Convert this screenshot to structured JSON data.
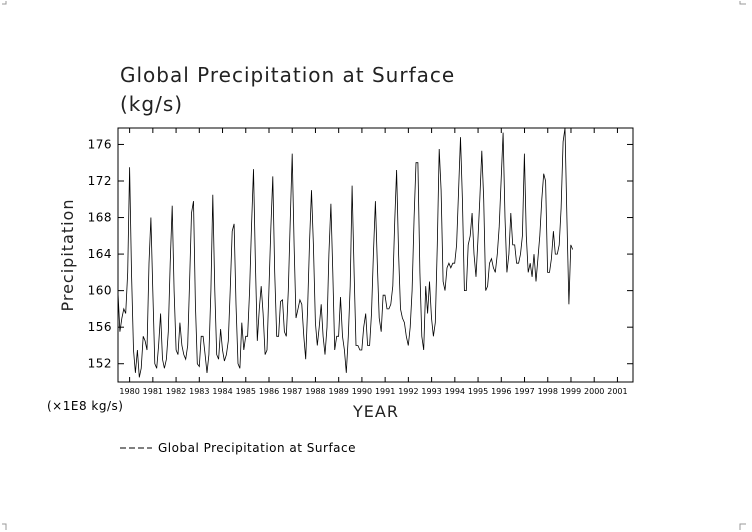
{
  "chart_data": {
    "type": "line",
    "title": "Global Precipitation at Surface",
    "units": "(kg/s)",
    "xlabel": "YEAR",
    "ylabel": "Precipitation",
    "scale_note": "(×1E8 kg/s)",
    "ylim": [
      150,
      177.8
    ],
    "yticks": [
      152,
      156,
      160,
      164,
      168,
      172,
      176
    ],
    "xlim": [
      1979.5,
      2001.67
    ],
    "xtick_labels": [
      "1980",
      "1981",
      "1982",
      "1983",
      "1984",
      "1985",
      "1986",
      "1987",
      "1988",
      "1989",
      "1990",
      "1991",
      "1992",
      "1993",
      "1994",
      "1995",
      "1996",
      "1997",
      "1998",
      "1999",
      "2000",
      "2001"
    ],
    "grid": false,
    "legend": {
      "position": "bottom-left",
      "entries": [
        {
          "label": "Global Precipitation at Surface",
          "style": "dashed",
          "color": "#000000"
        }
      ]
    },
    "series": [
      {
        "name": "Global Precipitation at Surface",
        "color": "#000000",
        "start_year": 1979.5,
        "step_years": 0.0833,
        "values": [
          159.8,
          155.5,
          157.0,
          158.0,
          157.5,
          162.0,
          173.5,
          162.0,
          153.5,
          151.0,
          153.5,
          150.5,
          151.5,
          155.0,
          154.5,
          153.5,
          163.0,
          168.0,
          160.0,
          152.0,
          151.5,
          154.0,
          157.5,
          152.5,
          151.5,
          152.5,
          155.5,
          163.0,
          169.3,
          160.0,
          153.5,
          153.0,
          156.5,
          154.0,
          153.0,
          152.5,
          154.0,
          161.0,
          168.5,
          169.8,
          158.5,
          152.0,
          151.7,
          155.0,
          155.0,
          153.0,
          151.0,
          153.0,
          160.0,
          170.5,
          160.0,
          153.0,
          152.5,
          155.8,
          153.5,
          152.3,
          153.0,
          154.5,
          160.0,
          166.5,
          167.3,
          158.5,
          152.0,
          151.5,
          156.5,
          153.5,
          155.0,
          155.0,
          160.0,
          167.0,
          173.3,
          163.0,
          154.5,
          158.0,
          160.5,
          157.5,
          153.0,
          153.5,
          160.0,
          167.0,
          172.5,
          162.0,
          155.0,
          155.0,
          158.8,
          159.0,
          155.5,
          155.0,
          160.0,
          167.5,
          175.0,
          165.0,
          157.0,
          158.0,
          159.0,
          158.5,
          155.0,
          152.5,
          158.0,
          165.5,
          171.0,
          165.0,
          156.5,
          154.0,
          156.0,
          158.5,
          155.0,
          153.0,
          156.0,
          164.0,
          169.5,
          162.0,
          153.5,
          155.0,
          155.0,
          159.3,
          155.0,
          153.5,
          151.0,
          155.0,
          160.5,
          171.5,
          162.0,
          154.0,
          154.0,
          153.5,
          153.5,
          156.0,
          157.5,
          154.0,
          154.0,
          157.5,
          164.0,
          169.8,
          163.0,
          157.0,
          155.5,
          159.5,
          159.5,
          158.0,
          158.0,
          158.5,
          160.5,
          167.5,
          173.2,
          164.0,
          158.0,
          157.0,
          156.5,
          155.0,
          154.0,
          156.0,
          160.0,
          168.0,
          174.0,
          174.0,
          162.0,
          155.0,
          153.5,
          160.5,
          157.5,
          161.0,
          157.0,
          155.0,
          156.5,
          165.0,
          175.5,
          171.0,
          161.0,
          160.0,
          162.5,
          163.0,
          162.5,
          163.0,
          163.0,
          165.0,
          171.0,
          176.8,
          170.0,
          160.0,
          160.0,
          165.0,
          166.0,
          168.5,
          164.0,
          161.5,
          165.5,
          170.0,
          175.3,
          170.0,
          160.0,
          160.5,
          163.0,
          163.5,
          162.5,
          162.0,
          164.0,
          167.0,
          172.0,
          177.3,
          168.0,
          162.0,
          164.0,
          168.5,
          165.0,
          165.0,
          163.0,
          163.0,
          164.0,
          166.0,
          175.0,
          166.0,
          162.0,
          163.0,
          161.5,
          164.0,
          161.0,
          163.5,
          166.0,
          170.0,
          172.8,
          172.0,
          162.0,
          162.0,
          163.5,
          166.5,
          164.0,
          164.0,
          165.0,
          169.0,
          176.3,
          177.8,
          168.0,
          158.5,
          165.0,
          164.5
        ]
      }
    ]
  }
}
